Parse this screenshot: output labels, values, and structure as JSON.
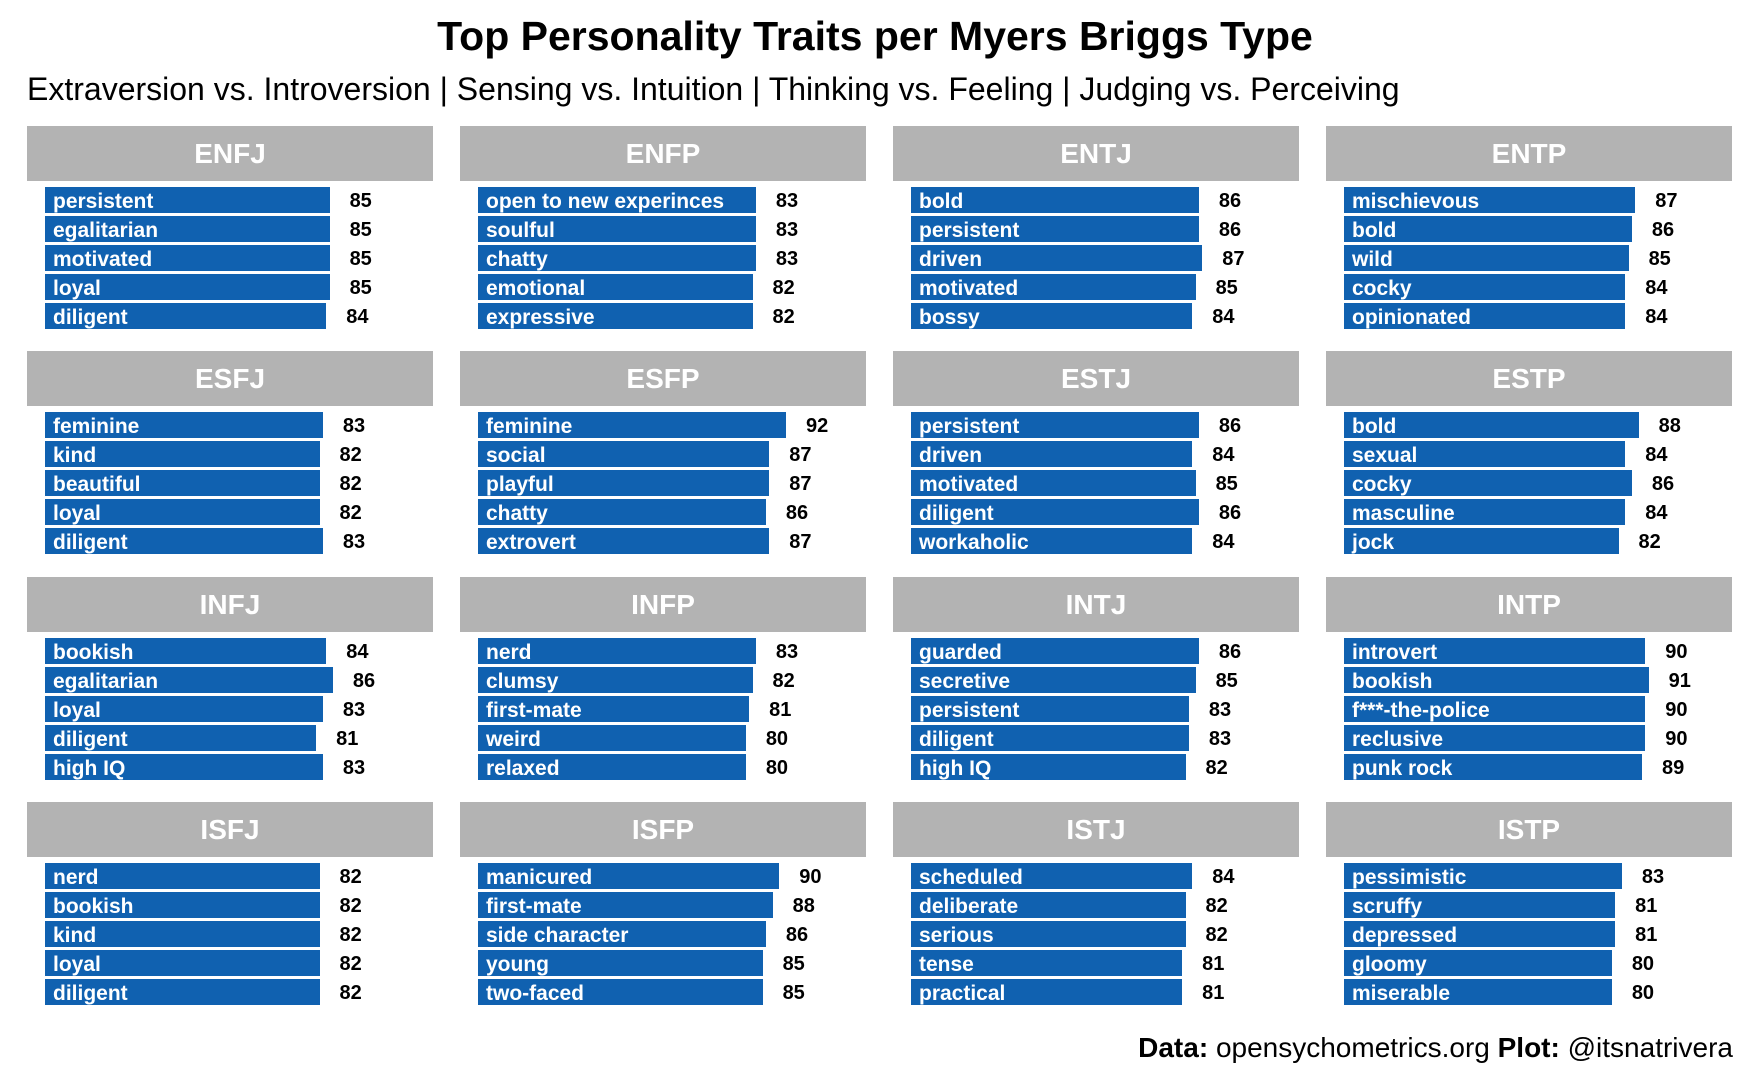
{
  "title": "Top Personality Traits per Myers Briggs Type",
  "subtitle": "Extraversion vs. Introversion | Sensing vs. Intuition | Thinking vs. Feeling | Judging vs. Perceiving",
  "caption": {
    "data_label": "Data:",
    "data_source": "opensychometrics.org",
    "plot_label": "Plot:",
    "plot_author": "@itsnatrivera"
  },
  "colors": {
    "bar": "#1061b0",
    "strip": "#b3b3b3",
    "strip_text": "#ffffff"
  },
  "chart_data": {
    "type": "bar",
    "orientation": "horizontal",
    "layout": "faceted 4x4",
    "bar_value_domain": [
      0,
      92
    ],
    "panels": [
      {
        "type_code": "ENFJ",
        "traits": [
          {
            "trait": "persistent",
            "score": 85
          },
          {
            "trait": "egalitarian",
            "score": 85
          },
          {
            "trait": "motivated",
            "score": 85
          },
          {
            "trait": "loyal",
            "score": 85
          },
          {
            "trait": "diligent",
            "score": 84
          }
        ]
      },
      {
        "type_code": "ENFP",
        "traits": [
          {
            "trait": "open to new experinces",
            "score": 83
          },
          {
            "trait": "soulful",
            "score": 83
          },
          {
            "trait": "chatty",
            "score": 83
          },
          {
            "trait": "emotional",
            "score": 82
          },
          {
            "trait": "expressive",
            "score": 82
          }
        ]
      },
      {
        "type_code": "ENTJ",
        "traits": [
          {
            "trait": "bold",
            "score": 86
          },
          {
            "trait": "persistent",
            "score": 86
          },
          {
            "trait": "driven",
            "score": 87
          },
          {
            "trait": "motivated",
            "score": 85
          },
          {
            "trait": "bossy",
            "score": 84
          }
        ]
      },
      {
        "type_code": "ENTP",
        "traits": [
          {
            "trait": "mischievous",
            "score": 87
          },
          {
            "trait": "bold",
            "score": 86
          },
          {
            "trait": "wild",
            "score": 85
          },
          {
            "trait": "cocky",
            "score": 84
          },
          {
            "trait": "opinionated",
            "score": 84
          }
        ]
      },
      {
        "type_code": "ESFJ",
        "traits": [
          {
            "trait": "feminine",
            "score": 83
          },
          {
            "trait": "kind",
            "score": 82
          },
          {
            "trait": "beautiful",
            "score": 82
          },
          {
            "trait": "loyal",
            "score": 82
          },
          {
            "trait": "diligent",
            "score": 83
          }
        ]
      },
      {
        "type_code": "ESFP",
        "traits": [
          {
            "trait": "feminine",
            "score": 92
          },
          {
            "trait": "social",
            "score": 87
          },
          {
            "trait": "playful",
            "score": 87
          },
          {
            "trait": "chatty",
            "score": 86
          },
          {
            "trait": "extrovert",
            "score": 87
          }
        ]
      },
      {
        "type_code": "ESTJ",
        "traits": [
          {
            "trait": "persistent",
            "score": 86
          },
          {
            "trait": "driven",
            "score": 84
          },
          {
            "trait": "motivated",
            "score": 85
          },
          {
            "trait": "diligent",
            "score": 86
          },
          {
            "trait": "workaholic",
            "score": 84
          }
        ]
      },
      {
        "type_code": "ESTP",
        "traits": [
          {
            "trait": "bold",
            "score": 88
          },
          {
            "trait": "sexual",
            "score": 84
          },
          {
            "trait": "cocky",
            "score": 86
          },
          {
            "trait": "masculine",
            "score": 84
          },
          {
            "trait": "jock",
            "score": 82
          }
        ]
      },
      {
        "type_code": "INFJ",
        "traits": [
          {
            "trait": "bookish",
            "score": 84
          },
          {
            "trait": "egalitarian",
            "score": 86
          },
          {
            "trait": "loyal",
            "score": 83
          },
          {
            "trait": "diligent",
            "score": 81
          },
          {
            "trait": "high IQ",
            "score": 83
          }
        ]
      },
      {
        "type_code": "INFP",
        "traits": [
          {
            "trait": "nerd",
            "score": 83
          },
          {
            "trait": "clumsy",
            "score": 82
          },
          {
            "trait": "first-mate",
            "score": 81
          },
          {
            "trait": "weird",
            "score": 80
          },
          {
            "trait": "relaxed",
            "score": 80
          }
        ]
      },
      {
        "type_code": "INTJ",
        "traits": [
          {
            "trait": "guarded",
            "score": 86
          },
          {
            "trait": "secretive",
            "score": 85
          },
          {
            "trait": "persistent",
            "score": 83
          },
          {
            "trait": "diligent",
            "score": 83
          },
          {
            "trait": "high IQ",
            "score": 82
          }
        ]
      },
      {
        "type_code": "INTP",
        "traits": [
          {
            "trait": "introvert",
            "score": 90
          },
          {
            "trait": "bookish",
            "score": 91
          },
          {
            "trait": "f***-the-police",
            "score": 90
          },
          {
            "trait": "reclusive",
            "score": 90
          },
          {
            "trait": "punk rock",
            "score": 89
          }
        ]
      },
      {
        "type_code": "ISFJ",
        "traits": [
          {
            "trait": "nerd",
            "score": 82
          },
          {
            "trait": "bookish",
            "score": 82
          },
          {
            "trait": "kind",
            "score": 82
          },
          {
            "trait": "loyal",
            "score": 82
          },
          {
            "trait": "diligent",
            "score": 82
          }
        ]
      },
      {
        "type_code": "ISFP",
        "traits": [
          {
            "trait": "manicured",
            "score": 90
          },
          {
            "trait": "first-mate",
            "score": 88
          },
          {
            "trait": "side character",
            "score": 86
          },
          {
            "trait": "young",
            "score": 85
          },
          {
            "trait": "two-faced",
            "score": 85
          }
        ]
      },
      {
        "type_code": "ISTJ",
        "traits": [
          {
            "trait": "scheduled",
            "score": 84
          },
          {
            "trait": "deliberate",
            "score": 82
          },
          {
            "trait": "serious",
            "score": 82
          },
          {
            "trait": "tense",
            "score": 81
          },
          {
            "trait": "practical",
            "score": 81
          }
        ]
      },
      {
        "type_code": "ISTP",
        "traits": [
          {
            "trait": "pessimistic",
            "score": 83
          },
          {
            "trait": "scruffy",
            "score": 81
          },
          {
            "trait": "depressed",
            "score": 81
          },
          {
            "trait": "gloomy",
            "score": 80
          },
          {
            "trait": "miserable",
            "score": 80
          }
        ]
      }
    ]
  }
}
